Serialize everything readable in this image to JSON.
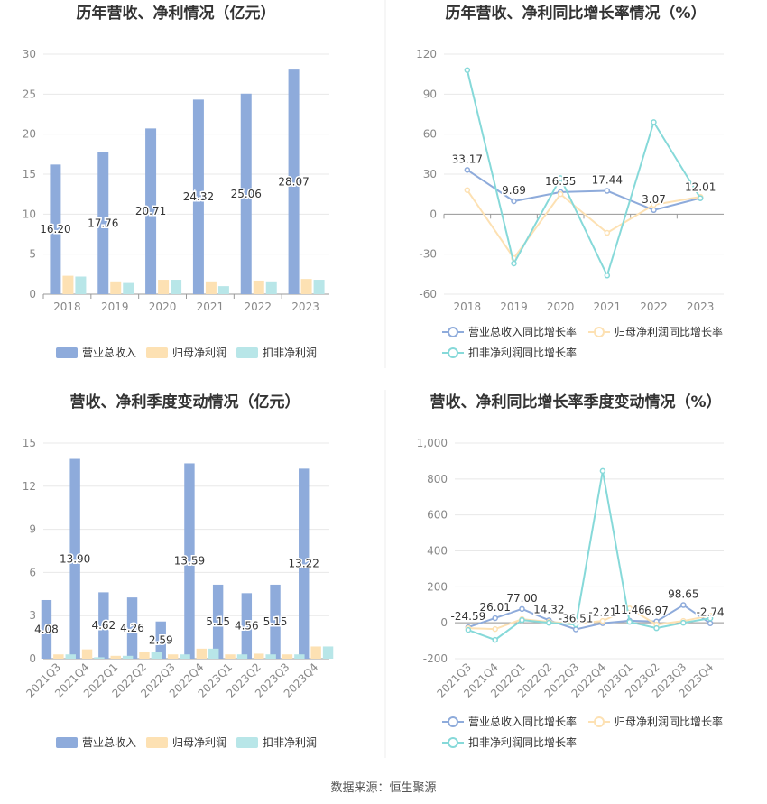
{
  "footer": {
    "source": "数据来源：恒生聚源"
  },
  "colors": {
    "revenue": "#8eabdb",
    "parent_net": "#fde1b3",
    "deducted_net": "#b8e6e8",
    "line_rev": "#8eabdb",
    "line_parent": "#fde1b3",
    "line_deducted": "#86d9d9"
  },
  "chart_data": [
    {
      "type": "bar",
      "title": "历年营收、净利情况（亿元）",
      "categories": [
        "2018",
        "2019",
        "2020",
        "2021",
        "2022",
        "2023"
      ],
      "ylim": [
        0,
        30
      ],
      "yticks": [
        "0",
        "5",
        "10",
        "15",
        "20",
        "25",
        "30"
      ],
      "series": [
        {
          "name": "营业总收入",
          "values": [
            16.2,
            17.76,
            20.71,
            24.32,
            25.06,
            28.07
          ],
          "labels": [
            "16.20",
            "17.76",
            "20.71",
            "24.32",
            "25.06",
            "28.07"
          ]
        },
        {
          "name": "归母净利润",
          "values": [
            2.3,
            1.6,
            1.8,
            1.6,
            1.7,
            1.9
          ]
        },
        {
          "name": "扣非净利润",
          "values": [
            2.2,
            1.4,
            1.8,
            1.0,
            1.6,
            1.8
          ]
        }
      ],
      "legend": "bottom"
    },
    {
      "type": "line",
      "title": "历年营收、净利同比增长率情况（%）",
      "categories": [
        "2018",
        "2019",
        "2020",
        "2021",
        "2022",
        "2023"
      ],
      "ylim": [
        -60,
        120
      ],
      "yticks": [
        "-60",
        "-30",
        "0",
        "30",
        "60",
        "90",
        "120"
      ],
      "series": [
        {
          "name": "营业总收入同比增长率",
          "values": [
            33.17,
            9.69,
            16.55,
            17.44,
            3.07,
            12.01
          ],
          "labels": [
            "33.17",
            "9.69",
            "16.55",
            "17.44",
            "3.07",
            "12.01"
          ]
        },
        {
          "name": "归母净利润同比增长率",
          "values": [
            18,
            -33,
            15,
            -14,
            7,
            13
          ]
        },
        {
          "name": "扣非净利润同比增长率",
          "values": [
            108,
            -37,
            27,
            -46,
            69,
            12
          ]
        }
      ],
      "legend": "bottom"
    },
    {
      "type": "bar",
      "title": "营收、净利季度变动情况（亿元）",
      "categories": [
        "2021Q3",
        "2021Q4",
        "2022Q1",
        "2022Q2",
        "2022Q3",
        "2022Q4",
        "2023Q1",
        "2023Q2",
        "2023Q3",
        "2023Q4"
      ],
      "ylim": [
        0,
        15
      ],
      "yticks": [
        "0",
        "3",
        "6",
        "9",
        "12",
        "15"
      ],
      "series": [
        {
          "name": "营业总收入",
          "values": [
            4.08,
            13.9,
            4.62,
            4.26,
            2.59,
            13.59,
            5.15,
            4.56,
            5.15,
            13.22
          ],
          "labels": [
            "4.08",
            "13.90",
            "4.62",
            "4.26",
            "2.59",
            "13.59",
            "5.15",
            "4.56",
            "5.15",
            "13.22"
          ]
        },
        {
          "name": "归母净利润",
          "values": [
            0.3,
            0.65,
            0.2,
            0.45,
            0.3,
            0.7,
            0.3,
            0.35,
            0.3,
            0.85
          ]
        },
        {
          "name": "扣非净利润",
          "values": [
            0.3,
            0.1,
            0.2,
            0.45,
            0.3,
            0.7,
            0.3,
            0.3,
            0.3,
            0.85
          ]
        }
      ],
      "legend": "bottom"
    },
    {
      "type": "line",
      "title": "营收、净利同比增长率季度变动情况（%）",
      "categories": [
        "2021Q3",
        "2021Q4",
        "2022Q1",
        "2022Q2",
        "2022Q3",
        "2022Q4",
        "2023Q1",
        "2023Q2",
        "2023Q3",
        "2023Q4"
      ],
      "ylim": [
        -200,
        1000
      ],
      "yticks": [
        "-200",
        "0",
        "200",
        "400",
        "600",
        "800",
        "1,000"
      ],
      "series": [
        {
          "name": "营业总收入同比增长率",
          "values": [
            -24.59,
            26.01,
            77.0,
            14.32,
            -36.51,
            -2.21,
            11.46,
            6.97,
            98.65,
            -2.74
          ],
          "labels": [
            "-24.59",
            "26.01",
            "77.00",
            "14.32",
            "-36.51",
            "-2.21",
            "11.46",
            "6.97",
            "98.65",
            "-2.74"
          ]
        },
        {
          "name": "归母净利润同比增长率",
          "values": [
            -30,
            -35,
            20,
            5,
            -5,
            10,
            80,
            -10,
            10,
            40
          ]
        },
        {
          "name": "扣非净利润同比增长率",
          "values": [
            -40,
            -95,
            15,
            0,
            -10,
            845,
            5,
            -30,
            0,
            25
          ]
        }
      ],
      "legend": "bottom"
    }
  ]
}
